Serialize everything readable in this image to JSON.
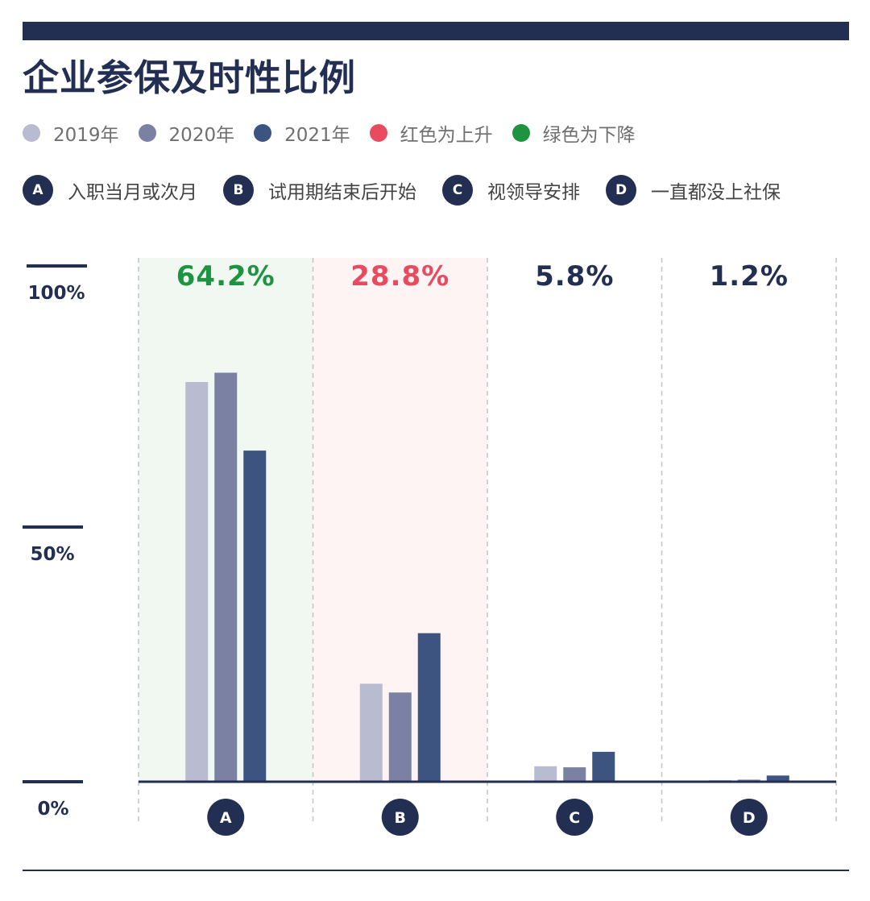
{
  "title": "企业参保及时性比例",
  "legend": [
    {
      "label": "2019年",
      "color": "#b9bcd0"
    },
    {
      "label": "2020年",
      "color": "#7a81a3"
    },
    {
      "label": "2021年",
      "color": "#3d5380"
    },
    {
      "label": "红色为上升",
      "color": "#e84a5f"
    },
    {
      "label": "绿色为下降",
      "color": "#1f9440"
    }
  ],
  "key": [
    {
      "badge": "A",
      "label": "入职当月或次月"
    },
    {
      "badge": "B",
      "label": "试用期结束后开始"
    },
    {
      "badge": "C",
      "label": "视领导安排"
    },
    {
      "badge": "D",
      "label": "一直都没上社保"
    }
  ],
  "chart_data": {
    "type": "bar",
    "title": "企业参保及时性比例",
    "categories": [
      "A",
      "B",
      "C",
      "D"
    ],
    "series": [
      {
        "name": "2019年",
        "color": "#b9bcd0",
        "values": [
          77.5,
          19.0,
          3.0,
          0.3
        ]
      },
      {
        "name": "2020年",
        "color": "#7a81a3",
        "values": [
          79.3,
          17.3,
          2.8,
          0.4
        ]
      },
      {
        "name": "2021年",
        "color": "#3d5380",
        "values": [
          64.2,
          28.8,
          5.8,
          1.2
        ]
      }
    ],
    "top_labels": [
      {
        "text": "64.2%",
        "color": "#1f9440"
      },
      {
        "text": "28.8%",
        "color": "#e84a5f"
      },
      {
        "text": "5.8%",
        "color": "#232f52"
      },
      {
        "text": "1.2%",
        "color": "#232f52"
      }
    ],
    "band_colors": [
      "#f1f8f2",
      "#fff4f4",
      null,
      null
    ],
    "y_ticks": [
      {
        "value": 100,
        "label": "100%"
      },
      {
        "value": 50,
        "label": "50%"
      },
      {
        "value": 0,
        "label": "0%"
      }
    ],
    "ylim": [
      0,
      100
    ],
    "grid": false
  }
}
